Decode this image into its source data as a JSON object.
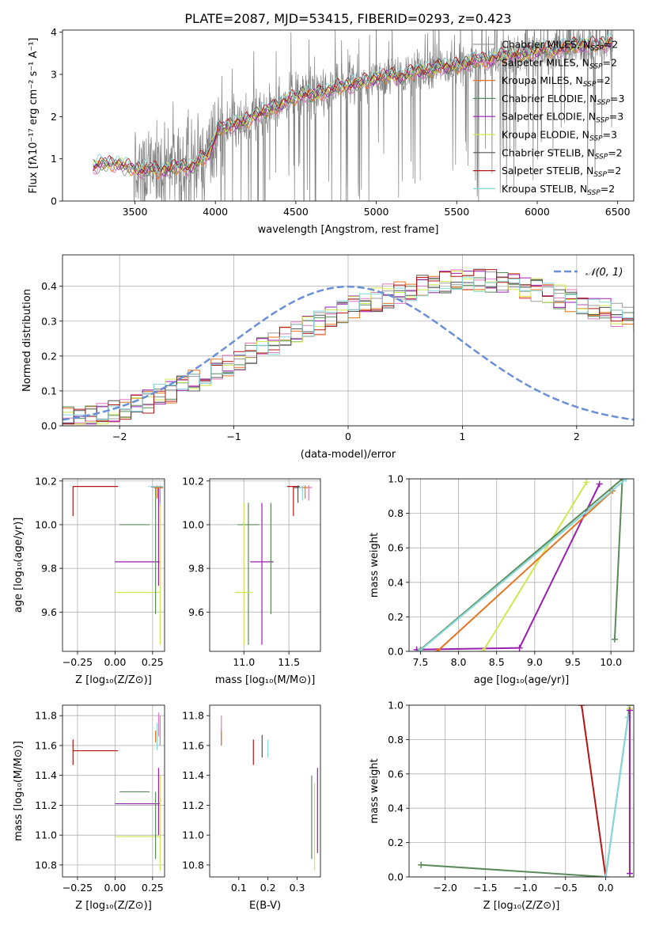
{
  "figure_title": "PLATE=2087, MJD=53415, FIBERID=0293, z=0.423",
  "panels": {
    "spectrum": {
      "title": "PLATE=2087, MJD=53415, FIBERID=0293, z=0.423",
      "xlabel": "wavelength [Angstrom, rest frame]",
      "ylabel": "Flux [fλ10⁻¹⁷ erg cm⁻² s⁻¹ A⁻¹]",
      "xlim": [
        3050,
        6600
      ],
      "ylim": [
        0,
        4.05
      ],
      "xticks": [
        3500,
        4000,
        4500,
        5000,
        5500,
        6000,
        6500
      ],
      "yticks": [
        0,
        1,
        2,
        3,
        4
      ],
      "legend_loc": "upper right"
    },
    "residuals": {
      "xlabel": "(data-model)/error",
      "ylabel": "Normed distribution",
      "xlim": [
        -2.5,
        2.5
      ],
      "ylim": [
        0,
        0.49
      ],
      "xticks": [
        -2,
        -1,
        0,
        1,
        2
      ],
      "yticks": [
        0.0,
        0.1,
        0.2,
        0.3,
        0.4
      ],
      "legend_label": "𝒩(0, 1)",
      "legend_loc": "upper right"
    },
    "age_z": {
      "xlabel": "Z [log₁₀(Z/Z⊙)]",
      "ylabel": "age  [log₁₀(age/yr)]",
      "xlim": [
        -0.35,
        0.33
      ],
      "ylim": [
        9.42,
        10.21
      ],
      "xticks": [
        -0.25,
        0.0,
        0.25
      ],
      "yticks": [
        9.6,
        9.8,
        10.0,
        10.2
      ]
    },
    "age_mass": {
      "xlabel": "mass [log₁₀(M/M⊙)]",
      "xlim": [
        10.62,
        11.85
      ],
      "ylim": [
        9.42,
        10.21
      ],
      "xticks": [
        11.0,
        11.5
      ],
      "yticks": [
        9.6,
        9.8,
        10.0,
        10.2
      ]
    },
    "mw_age": {
      "xlabel": "age  [log₁₀(age/yr)]",
      "ylabel": "mass weight",
      "xlim": [
        7.35,
        10.3
      ],
      "ylim": [
        0,
        1
      ],
      "xticks": [
        7.5,
        8.0,
        8.5,
        9.0,
        9.5,
        10.0
      ],
      "yticks": [
        0.0,
        0.2,
        0.4,
        0.6,
        0.8,
        1.0
      ]
    },
    "mass_z": {
      "xlabel": "Z [log₁₀(Z/Z⊙)]",
      "ylabel": "mass [log₁₀(M/M⊙)]",
      "xlim": [
        -0.35,
        0.33
      ],
      "ylim": [
        10.72,
        11.87
      ],
      "xticks": [
        -0.25,
        0.0,
        0.25
      ],
      "yticks": [
        10.8,
        11.0,
        11.2,
        11.4,
        11.6,
        11.8
      ]
    },
    "mass_ebv": {
      "xlabel": "E(B-V)",
      "xlim": [
        0.0,
        0.38
      ],
      "ylim": [
        10.72,
        11.87
      ],
      "xticks": [
        0.1,
        0.2,
        0.3
      ],
      "yticks": [
        10.8,
        11.0,
        11.2,
        11.4,
        11.6,
        11.8
      ]
    },
    "mw_z": {
      "xlabel": "Z [log₁₀(Z/Z⊙)]",
      "ylabel": "mass weight",
      "xlim": [
        -2.45,
        0.35
      ],
      "ylim": [
        0,
        1
      ],
      "xticks": [
        -2.0,
        -1.5,
        -1.0,
        -0.5,
        0.0
      ],
      "yticks": [
        0.0,
        0.2,
        0.4,
        0.6,
        0.8,
        1.0
      ]
    }
  },
  "models": [
    {
      "name": "Chabrier MILES, N_SSP=2",
      "color": "#9b9b9b"
    },
    {
      "name": "Salpeter MILES, N_SSP=2",
      "color": "#e377c2"
    },
    {
      "name": "Kroupa MILES, N_SSP=2",
      "color": "#e8731f"
    },
    {
      "name": "Chabrier ELODIE, N_SSP=3",
      "color": "#5a8a5a"
    },
    {
      "name": "Salpeter ELODIE, N_SSP=3",
      "color": "#9a1eb0"
    },
    {
      "name": "Kroupa ELODIE, N_SSP=3",
      "color": "#d0e84e"
    },
    {
      "name": "Chabrier STELIB, N_SSP=2",
      "color": "#555555"
    },
    {
      "name": "Salpeter STELIB, N_SSP=2",
      "color": "#b31414"
    },
    {
      "name": "Kroupa STELIB, N_SSP=2",
      "color": "#85d8dc"
    }
  ],
  "normal_color": "#6a8fd6",
  "chart_data": [
    {
      "type": "line",
      "title": "PLATE=2087, MJD=53415, FIBERID=0293, z=0.423",
      "xlabel": "wavelength [Angstrom, rest frame]",
      "ylabel": "Flux [fλ10⁻¹⁷ erg cm⁻² s⁻¹ A⁻¹]",
      "xlim": [
        3050,
        6600
      ],
      "ylim": [
        0,
        4.05
      ],
      "data_range": [
        3240,
        6470
      ],
      "data_color": "#808080",
      "model_curve": {
        "x": [
          3240,
          3260,
          3300,
          3350,
          3400,
          3450,
          3500,
          3550,
          3600,
          3650,
          3700,
          3750,
          3800,
          3850,
          3900,
          3930,
          3960,
          3990,
          4020,
          4060,
          4100,
          4150,
          4200,
          4250,
          4300,
          4350,
          4400,
          4450,
          4500,
          4550,
          4600,
          4650,
          4700,
          4750,
          4800,
          4850,
          4900,
          4950,
          5000,
          5050,
          5100,
          5150,
          5200,
          5250,
          5300,
          5350,
          5400,
          5450,
          5500,
          5550,
          5600,
          5650,
          5700,
          5750,
          5800,
          5850,
          5900,
          5950,
          6000,
          6050,
          6100,
          6150,
          6200,
          6250,
          6300,
          6350,
          6400,
          6450,
          6470
        ],
        "y": [
          0.8,
          0.85,
          0.9,
          0.87,
          0.88,
          0.82,
          0.75,
          0.72,
          0.78,
          0.7,
          0.75,
          0.8,
          0.82,
          0.78,
          0.95,
          1.05,
          1.1,
          1.4,
          1.7,
          1.75,
          1.8,
          1.85,
          1.9,
          2.05,
          2.1,
          2.2,
          2.25,
          2.4,
          2.45,
          2.55,
          2.5,
          2.55,
          2.6,
          2.7,
          2.72,
          2.75,
          2.8,
          2.85,
          2.9,
          2.95,
          3.0,
          2.9,
          3.0,
          3.1,
          3.05,
          3.1,
          3.2,
          3.15,
          3.2,
          3.25,
          3.3,
          3.35,
          3.3,
          3.4,
          3.45,
          3.5,
          3.45,
          3.5,
          3.55,
          3.6,
          3.55,
          3.62,
          3.65,
          3.7,
          3.68,
          3.72,
          3.7,
          3.75,
          3.78
        ]
      }
    },
    {
      "type": "bar",
      "xlabel": "(data-model)/error",
      "ylabel": "Normed distribution",
      "xlim": [
        -2.5,
        2.5
      ],
      "ylim": [
        0,
        0.49
      ],
      "bin_width": 0.1,
      "bins_start": -2.5,
      "envelope": [
        0.02,
        0.02,
        0.025,
        0.03,
        0.04,
        0.05,
        0.06,
        0.07,
        0.085,
        0.1,
        0.115,
        0.13,
        0.145,
        0.16,
        0.175,
        0.19,
        0.205,
        0.22,
        0.235,
        0.25,
        0.265,
        0.28,
        0.295,
        0.31,
        0.325,
        0.34,
        0.352,
        0.362,
        0.372,
        0.382,
        0.392,
        0.4,
        0.405,
        0.41,
        0.415,
        0.42,
        0.418,
        0.415,
        0.41,
        0.405,
        0.398,
        0.39,
        0.38,
        0.37,
        0.36,
        0.35,
        0.34,
        0.33,
        0.318,
        0.306,
        0.295,
        0.28,
        0.265,
        0.25,
        0.235,
        0.22,
        0.2,
        0.18,
        0.16,
        0.14,
        0.12,
        0.1,
        0.08,
        0.065,
        0.05,
        0.04,
        0.035,
        0.03,
        0.03,
        0.03,
        0.03,
        0.028,
        0.025,
        0.022,
        0.02,
        0.02,
        0.02,
        0.02,
        0.02,
        0.02
      ],
      "normal": {
        "name": "𝒩(0, 1)",
        "mean": 0,
        "std": 1
      }
    },
    {
      "type": "scatter",
      "xlabel": "Z [log₁₀(Z/Z⊙)]",
      "ylabel": "age  [log₁₀(age/yr)]",
      "x_err": [
        {
          "model": 7,
          "x": -0.13,
          "xerr": 0.15,
          "y": 10.175,
          "yerr_lo": 0.14,
          "yerr_hi": 0.0
        },
        {
          "model": 3,
          "x": 0.13,
          "xerr": 0.1,
          "y": 10.0,
          "yerr_lo": 0.0,
          "yerr_hi": 0.0
        },
        {
          "model": 4,
          "x": 0.15,
          "xerr": 0.15,
          "y": 9.83,
          "yerr_lo": 0.0,
          "yerr_hi": 0.0
        },
        {
          "model": 5,
          "x": 0.15,
          "xerr": 0.15,
          "y": 9.69,
          "yerr_lo": 0.0,
          "yerr_hi": 0.0
        }
      ],
      "y_err": [
        {
          "model": 3,
          "x": 0.27,
          "y0": 9.59,
          "y1": 10.17
        },
        {
          "model": 4,
          "x": 0.29,
          "y0": 9.72,
          "y1": 10.17
        },
        {
          "model": 5,
          "x": 0.3,
          "y0": 9.45,
          "y1": 10.17
        },
        {
          "model": 8,
          "x": 0.3,
          "y0": 10.09,
          "y1": 10.18
        },
        {
          "model": 0,
          "x": 0.3,
          "y0": 10.1,
          "y1": 10.18
        },
        {
          "model": 2,
          "x": 0.28,
          "y0": 10.12,
          "y1": 10.18
        }
      ]
    },
    {
      "type": "scatter",
      "xlabel": "mass [log₁₀(M/M⊙)]",
      "crosses": [
        {
          "model": 3,
          "x": 11.05,
          "xerr": 0.12,
          "y": 10.0,
          "y0": 9.45,
          "y1": 10.1
        },
        {
          "model": 4,
          "x": 11.2,
          "xerr": 0.13,
          "y": 9.83,
          "y0": 9.45,
          "y1": 10.1
        },
        {
          "model": 5,
          "x": 11.0,
          "xerr": 0.1,
          "y": 9.69,
          "y0": 9.45,
          "y1": 10.1
        },
        {
          "model": 3,
          "x": 11.3,
          "xerr": 0.0,
          "y": 9.59,
          "y0": 9.59,
          "y1": 10.1
        },
        {
          "model": 7,
          "x": 11.55,
          "xerr": 0.07,
          "y": 10.175,
          "y0": 10.04,
          "y1": 10.175
        },
        {
          "model": 6,
          "x": 11.6,
          "xerr": 0.05,
          "y": 10.17,
          "y0": 10.1,
          "y1": 10.18
        },
        {
          "model": 8,
          "x": 11.65,
          "xerr": 0.04,
          "y": 10.17,
          "y0": 10.11,
          "y1": 10.18
        },
        {
          "model": 1,
          "x": 11.72,
          "xerr": 0.04,
          "y": 10.17,
          "y0": 10.11,
          "y1": 10.18
        },
        {
          "model": 2,
          "x": 11.68,
          "xerr": 0.03,
          "y": 10.17,
          "y0": 10.12,
          "y1": 10.18
        }
      ]
    },
    {
      "type": "line",
      "xlabel": "age  [log₁₀(age/yr)]",
      "ylabel": "mass weight",
      "series": [
        {
          "model": 4,
          "x": [
            7.45,
            8.8,
            9.85
          ],
          "y": [
            0.01,
            0.02,
            0.97
          ]
        },
        {
          "model": 5,
          "x": [
            8.32,
            9.68
          ],
          "y": [
            0.0,
            0.98
          ]
        },
        {
          "model": 2,
          "x": [
            7.72,
            10.02
          ],
          "y": [
            0.0,
            0.93
          ]
        },
        {
          "model": 3,
          "x": [
            7.5,
            10.15,
            10.05
          ],
          "y": [
            0.01,
            1.0,
            0.07
          ]
        },
        {
          "model": 8,
          "x": [
            7.48,
            10.2
          ],
          "y": [
            0.0,
            1.0
          ]
        }
      ]
    },
    {
      "type": "scatter",
      "xlabel": "Z [log₁₀(Z/Z⊙)]",
      "ylabel": "mass [log₁₀(M/M⊙)]",
      "x_err": [
        {
          "model": 7,
          "x": -0.13,
          "xerr": 0.15,
          "y": 11.565
        },
        {
          "model": 3,
          "x": 0.13,
          "xerr": 0.1,
          "y": 11.29
        },
        {
          "model": 4,
          "x": 0.15,
          "xerr": 0.15,
          "y": 11.21
        },
        {
          "model": 5,
          "x": 0.15,
          "xerr": 0.15,
          "y": 10.99
        }
      ],
      "y_err": [
        {
          "model": 7,
          "x": -0.28,
          "y0": 11.47,
          "y1": 11.64
        },
        {
          "model": 3,
          "x": 0.27,
          "y0": 10.84,
          "y1": 11.29
        },
        {
          "model": 4,
          "x": 0.29,
          "y0": 11.0,
          "y1": 11.45
        },
        {
          "model": 5,
          "x": 0.3,
          "y0": 10.76,
          "y1": 11.4
        },
        {
          "model": 8,
          "x": 0.28,
          "y0": 11.57,
          "y1": 11.75
        },
        {
          "model": 0,
          "x": 0.3,
          "y0": 11.6,
          "y1": 11.8
        },
        {
          "model": 2,
          "x": 0.27,
          "y0": 11.62,
          "y1": 11.7
        },
        {
          "model": 1,
          "x": 0.29,
          "y0": 11.66,
          "y1": 11.82
        }
      ]
    },
    {
      "type": "scatter",
      "xlabel": "E(B-V)",
      "y_err": [
        {
          "model": 1,
          "x": 0.04,
          "y0": 11.6,
          "y1": 11.8
        },
        {
          "model": 2,
          "x": 0.04,
          "y0": 11.6,
          "y1": 11.7
        },
        {
          "model": 7,
          "x": 0.15,
          "y0": 11.47,
          "y1": 11.64
        },
        {
          "model": 6,
          "x": 0.18,
          "y0": 11.52,
          "y1": 11.67
        },
        {
          "model": 8,
          "x": 0.2,
          "y0": 11.52,
          "y1": 11.64
        },
        {
          "model": 3,
          "x": 0.35,
          "y0": 10.84,
          "y1": 11.4
        },
        {
          "model": 5,
          "x": 0.36,
          "y0": 10.76,
          "y1": 11.35
        },
        {
          "model": 4,
          "x": 0.37,
          "y0": 10.88,
          "y1": 11.45
        }
      ]
    },
    {
      "type": "line",
      "xlabel": "Z [log₁₀(Z/Z⊙)]",
      "ylabel": "mass weight",
      "series": [
        {
          "model": 7,
          "x": [
            -0.3,
            0.0
          ],
          "y": [
            1.0,
            0.0
          ]
        },
        {
          "model": 3,
          "x": [
            -2.3,
            0.0,
            0.3
          ],
          "y": [
            0.07,
            0.0,
            1.0
          ]
        },
        {
          "model": 8,
          "x": [
            0.0,
            0.28
          ],
          "y": [
            0.0,
            0.93
          ]
        },
        {
          "model": 5,
          "x": [
            0.3,
            0.3
          ],
          "y": [
            0.0,
            0.98
          ]
        },
        {
          "model": 4,
          "x": [
            0.3,
            0.3
          ],
          "y": [
            0.02,
            0.97
          ]
        }
      ]
    }
  ]
}
